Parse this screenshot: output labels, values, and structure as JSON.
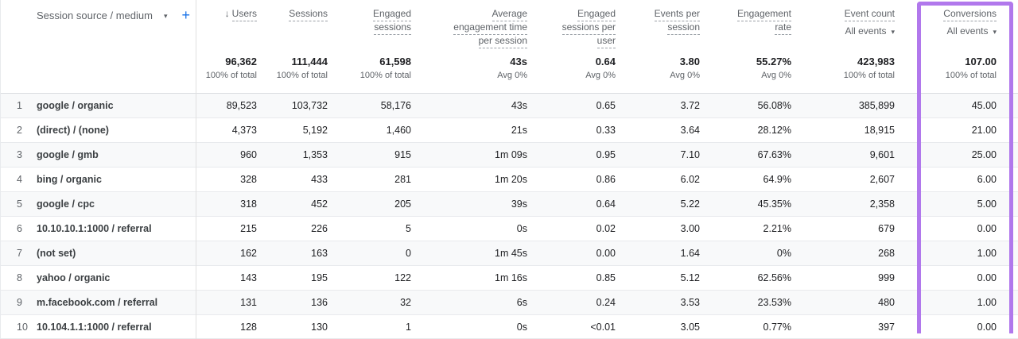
{
  "colors": {
    "highlight_purple": "#b178ec",
    "accent_blue": "#1a73e8",
    "header_text": "#5f6368",
    "value_text": "#202124",
    "row_stripe": "#f8f9fa"
  },
  "icons": {
    "sort_descending": "↓",
    "caret": "▾"
  },
  "header": {
    "dimension": {
      "label": "Session source / medium",
      "add_button": "+"
    },
    "columns": [
      {
        "id": "users",
        "label": "Users",
        "sorted": "desc"
      },
      {
        "id": "sessions",
        "label": "Sessions"
      },
      {
        "id": "engaged-sessions",
        "label": "Engaged\nsessions"
      },
      {
        "id": "avg-engagement-time-per-session",
        "label": "Average\nengagement time\nper session"
      },
      {
        "id": "engaged-sessions-per-user",
        "label": "Engaged\nsessions per\nuser"
      },
      {
        "id": "events-per-session",
        "label": "Events per\nsession"
      },
      {
        "id": "engagement-rate",
        "label": "Engagement\nrate"
      },
      {
        "id": "event-count",
        "label": "Event count",
        "filter": "All events"
      },
      {
        "id": "conversions",
        "label": "Conversions",
        "filter": "All events",
        "highlighted": true
      }
    ]
  },
  "totals": [
    {
      "value": "96,362",
      "sub": "100% of total"
    },
    {
      "value": "111,444",
      "sub": "100% of total"
    },
    {
      "value": "61,598",
      "sub": "100% of total"
    },
    {
      "value": "43s",
      "sub": "Avg 0%"
    },
    {
      "value": "0.64",
      "sub": "Avg 0%"
    },
    {
      "value": "3.80",
      "sub": "Avg 0%"
    },
    {
      "value": "55.27%",
      "sub": "Avg 0%"
    },
    {
      "value": "423,983",
      "sub": "100% of total"
    },
    {
      "value": "107.00",
      "sub": "100% of total"
    }
  ],
  "rows": [
    {
      "num": "1",
      "source": "google / organic",
      "values": [
        "89,523",
        "103,732",
        "58,176",
        "43s",
        "0.65",
        "3.72",
        "56.08%",
        "385,899",
        "45.00"
      ]
    },
    {
      "num": "2",
      "source": "(direct) / (none)",
      "values": [
        "4,373",
        "5,192",
        "1,460",
        "21s",
        "0.33",
        "3.64",
        "28.12%",
        "18,915",
        "21.00"
      ]
    },
    {
      "num": "3",
      "source": "google / gmb",
      "values": [
        "960",
        "1,353",
        "915",
        "1m 09s",
        "0.95",
        "7.10",
        "67.63%",
        "9,601",
        "25.00"
      ]
    },
    {
      "num": "4",
      "source": "bing / organic",
      "values": [
        "328",
        "433",
        "281",
        "1m 20s",
        "0.86",
        "6.02",
        "64.9%",
        "2,607",
        "6.00"
      ]
    },
    {
      "num": "5",
      "source": "google / cpc",
      "values": [
        "318",
        "452",
        "205",
        "39s",
        "0.64",
        "5.22",
        "45.35%",
        "2,358",
        "5.00"
      ]
    },
    {
      "num": "6",
      "source": "10.10.10.1:1000 / referral",
      "values": [
        "215",
        "226",
        "5",
        "0s",
        "0.02",
        "3.00",
        "2.21%",
        "679",
        "0.00"
      ]
    },
    {
      "num": "7",
      "source": "(not set)",
      "values": [
        "162",
        "163",
        "0",
        "1m 45s",
        "0.00",
        "1.64",
        "0%",
        "268",
        "1.00"
      ]
    },
    {
      "num": "8",
      "source": "yahoo / organic",
      "values": [
        "143",
        "195",
        "122",
        "1m 16s",
        "0.85",
        "5.12",
        "62.56%",
        "999",
        "0.00"
      ]
    },
    {
      "num": "9",
      "source": "m.facebook.com / referral",
      "values": [
        "131",
        "136",
        "32",
        "6s",
        "0.24",
        "3.53",
        "23.53%",
        "480",
        "1.00"
      ]
    },
    {
      "num": "10",
      "source": "10.104.1.1:1000 / referral",
      "values": [
        "128",
        "130",
        "1",
        "0s",
        "<0.01",
        "3.05",
        "0.77%",
        "397",
        "0.00"
      ]
    }
  ]
}
